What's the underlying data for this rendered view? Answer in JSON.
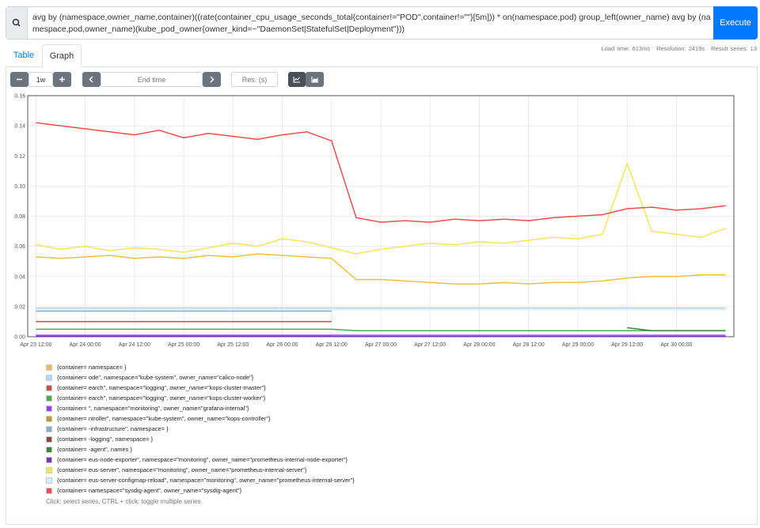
{
  "query": "avg by (namespace,owner_name,container)((rate(container_cpu_usage_seconds_total{container!=\"POD\",container!=\"\"}[5m])) * on(namespace,pod) group_left(owner_name) avg by (namespace,pod,owner_name)(kube_pod_owner{owner_kind=~\"DaemonSet|StatefulSet|Deployment\"}))",
  "execute_button": "Execute",
  "stats": [
    "Load time: 613ms",
    "Resolution: 2419s",
    "Result series: 13"
  ],
  "tabs": [
    "Table",
    "Graph"
  ],
  "controls": {
    "range": "1w",
    "end_time": "End time",
    "resolution": "Res. (s)"
  },
  "chart_data": {
    "type": "line",
    "x": [
      "Apr 23 12:00",
      "Apr 23 18:00",
      "Apr 24 00:00",
      "Apr 24 06:00",
      "Apr 24 12:00",
      "Apr 24 18:00",
      "Apr 25 00:00",
      "Apr 25 06:00",
      "Apr 25 12:00",
      "Apr 25 18:00",
      "Apr 26 00:00",
      "Apr 26 06:00",
      "Apr 26 12:00",
      "Apr 26 18:00",
      "Apr 27 00:00",
      "Apr 27 06:00",
      "Apr 27 12:00",
      "Apr 27 18:00",
      "Apr 28 00:00",
      "Apr 28 06:00",
      "Apr 28 12:00",
      "Apr 28 18:00",
      "Apr 29 00:00",
      "Apr 29 06:00",
      "Apr 29 12:00",
      "Apr 29 18:00",
      "Apr 30 00:00",
      "Apr 30 06:00",
      "Apr 30 12:00"
    ],
    "xlim": [
      "Apr 23 10:00",
      "Apr 30 14:00"
    ],
    "xticks": [
      "Apr 23 12:00",
      "Apr 24 00:00",
      "Apr 24 12:00",
      "Apr 25 00:00",
      "Apr 25 12:00",
      "Apr 26 00:00",
      "Apr 26 12:00",
      "Apr 27 00:00",
      "Apr 27 12:00",
      "Apr 28 00:00",
      "Apr 28 12:00",
      "Apr 29 00:00",
      "Apr 29 12:00",
      "Apr 30 00:00"
    ],
    "ylim": [
      0,
      0.16
    ],
    "yticks": [
      {
        "value": 0,
        "label": "0.00"
      },
      0.02,
      0.04,
      0.06,
      0.08,
      {
        "value": 0.1,
        "label": "0.10"
      },
      0.12,
      0.14,
      0.16
    ],
    "grid": true,
    "series": [
      {
        "name": "{container= namespace= }",
        "color": "#edc240",
        "values": [
          0.053,
          0.052,
          0.053,
          0.054,
          0.052,
          0.053,
          0.052,
          0.054,
          0.053,
          0.055,
          0.054,
          0.053,
          0.052,
          0.038,
          0.038,
          0.037,
          0.036,
          0.035,
          0.035,
          0.036,
          0.035,
          0.036,
          0.036,
          0.037,
          0.039,
          0.04,
          0.04,
          0.041,
          0.041
        ]
      },
      {
        "name": "{container= ode\", namespace=\"kube-system\", owner_name=\"calico-node\"}",
        "color": "#afd8f8",
        "values": [
          0.019,
          0.019,
          0.019,
          0.019,
          0.019,
          0.019,
          0.019,
          0.019,
          0.019,
          0.019,
          0.019,
          0.019,
          0.019,
          0.019,
          0.019,
          0.019,
          0.019,
          0.019,
          0.019,
          0.019,
          0.019,
          0.019,
          0.019,
          0.019,
          0.019,
          0.019,
          0.019,
          0.019,
          0.019
        ]
      },
      {
        "name": "{container= earch\", namespace=\"logging\", owner_name=\"kops-cluster-master\"}",
        "color": "#cb4b4b",
        "values": [
          0.01,
          0.01,
          0.01,
          0.01,
          0.01,
          0.01,
          0.01,
          0.01,
          0.01,
          0.01,
          0.01,
          0.01,
          0.01,
          null,
          null,
          null,
          null,
          null,
          null,
          null,
          null,
          null,
          null,
          null,
          null,
          null,
          null,
          null,
          null
        ]
      },
      {
        "name": "{container= earch\", namespace=\"logging\", owner_name=\"kops-cluster-worker\"}",
        "color": "#4da74d",
        "values": [
          0.005,
          0.005,
          0.005,
          0.005,
          0.005,
          0.005,
          0.005,
          0.005,
          0.005,
          0.005,
          0.005,
          0.005,
          0.005,
          0.004,
          0.004,
          0.004,
          0.004,
          0.004,
          0.004,
          0.004,
          0.004,
          0.004,
          0.004,
          0.004,
          0.004,
          0.004,
          0.004,
          0.004,
          0.004
        ]
      },
      {
        "name": "{container= \", namespace=\"monitoring\", owner_name=\"grafana-internal\"}",
        "color": "#9440ed",
        "values": [
          0.001,
          0.001,
          0.001,
          0.001,
          0.001,
          0.001,
          0.001,
          0.001,
          0.001,
          0.001,
          0.001,
          0.001,
          0.001,
          0.001,
          0.001,
          0.001,
          0.001,
          0.001,
          0.001,
          0.001,
          0.001,
          0.001,
          0.001,
          0.001,
          0.001,
          0.001,
          0.001,
          0.001,
          0.001
        ]
      },
      {
        "name": "{container= ntroller\", namespace=\"kube-system\", owner_name=\"kops-controller\"}",
        "color": "#bd9b33",
        "values": [
          0.0005,
          0.0005,
          0.0005,
          0.0005,
          0.0005,
          0.0005,
          0.0005,
          0.0005,
          0.0005,
          0.0005,
          0.0005,
          0.0005,
          0.0005,
          0.0005,
          0.0005,
          0.0005,
          0.0005,
          0.0005,
          0.0005,
          0.0005,
          0.0005,
          0.0005,
          0.0005,
          0.0005,
          0.0005,
          0.0005,
          0.0005,
          0.0005,
          0.0005
        ]
      },
      {
        "name": "{container= -infrastructure\", namespace= }",
        "color": "#8cacc6",
        "values": [
          0.017,
          0.017,
          0.017,
          0.017,
          0.017,
          0.017,
          0.017,
          0.017,
          0.017,
          0.017,
          0.017,
          0.017,
          0.017,
          null,
          null,
          null,
          null,
          null,
          null,
          null,
          null,
          null,
          null,
          null,
          null,
          null,
          null,
          null,
          null
        ]
      },
      {
        "name": "{container= -logging\", namespace= }",
        "color": "#a23c3c",
        "values": [
          0.0003,
          0.0003,
          0.0003,
          0.0003,
          0.0003,
          0.0003,
          0.0003,
          0.0003,
          0.0003,
          0.0003,
          0.0003,
          0.0003,
          0.0003,
          null,
          null,
          null,
          null,
          null,
          null,
          null,
          null,
          null,
          null,
          null,
          null,
          null,
          null,
          null,
          null
        ]
      },
      {
        "name": "{container= -agent\", names }",
        "color": "#3d853d",
        "values": [
          null,
          null,
          null,
          null,
          null,
          null,
          null,
          null,
          null,
          null,
          null,
          null,
          null,
          null,
          null,
          null,
          null,
          null,
          null,
          null,
          null,
          null,
          null,
          null,
          0.006,
          0.004,
          0.004,
          0.004,
          0.004
        ]
      },
      {
        "name": "{container= eus-node-exporter\", namespace=\"monitoring\", owner_name=\"prometheus-internal-node-exporter\"}",
        "color": "#7633bd",
        "values": [
          0.0002,
          0.0002,
          0.0002,
          0.0002,
          0.0002,
          0.0002,
          0.0002,
          0.0002,
          0.0002,
          0.0002,
          0.0002,
          0.0002,
          0.0002,
          0.0002,
          0.0002,
          0.0002,
          0.0002,
          0.0002,
          0.0002,
          0.0002,
          0.0002,
          0.0002,
          0.0002,
          0.0002,
          0.0002,
          0.0002,
          0.0002,
          0.0002,
          0.0002
        ]
      },
      {
        "name": "{container= eus-server\", namespace=\"monitoring\", owner_name=\"prometheus-internal-server\"}",
        "color": "#f8e45a",
        "values": [
          0.061,
          0.058,
          0.06,
          0.057,
          0.059,
          0.058,
          0.056,
          0.059,
          0.062,
          0.06,
          0.065,
          0.063,
          0.059,
          0.055,
          0.058,
          0.06,
          0.062,
          0.061,
          0.063,
          0.062,
          0.064,
          0.066,
          0.065,
          0.068,
          0.115,
          0.07,
          0.068,
          0.066,
          0.072
        ]
      },
      {
        "name": "{container= eus-server-configmap-reload\", namespace=\"monitoring\", owner_name=\"prometheus-internal-server\"}",
        "color": "#d2f0ff",
        "values": [
          0.018,
          0.018,
          0.018,
          0.018,
          0.018,
          0.018,
          0.018,
          0.018,
          0.018,
          0.018,
          0.018,
          0.018,
          0.018,
          0.018,
          0.018,
          0.018,
          0.018,
          0.018,
          0.018,
          0.018,
          0.018,
          0.018,
          0.018,
          0.018,
          0.018,
          0.018,
          0.018,
          0.018,
          0.018
        ]
      },
      {
        "name": "{container= namespace=\"sysdig-agent\", owner_name=\"sysdig-agent\"}",
        "color": "#e8504d",
        "values": [
          0.142,
          0.14,
          0.138,
          0.136,
          0.134,
          0.137,
          0.132,
          0.135,
          0.133,
          0.131,
          0.134,
          0.136,
          0.13,
          0.079,
          0.076,
          0.077,
          0.076,
          0.078,
          0.077,
          0.078,
          0.077,
          0.079,
          0.08,
          0.081,
          0.085,
          0.086,
          0.084,
          0.085,
          0.087
        ]
      }
    ]
  },
  "hint": "Click: select series, CTRL + click: toggle multiple series"
}
